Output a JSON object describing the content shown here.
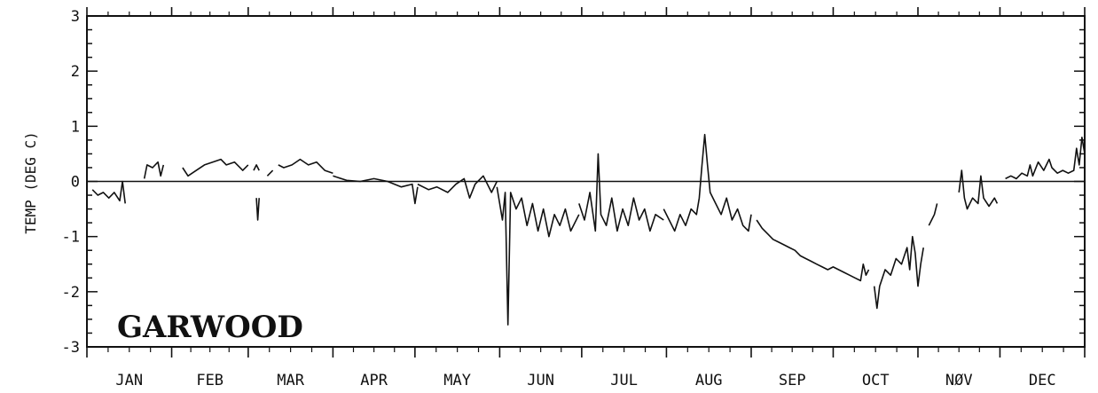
{
  "chart_data": {
    "type": "line",
    "title": "",
    "xlabel": "",
    "ylabel": "TEMP (DEG C)",
    "annotation": "GARWOOD",
    "xlim": [
      0,
      365
    ],
    "ylim": [
      -3,
      3
    ],
    "yticks": [
      -3,
      -2,
      -1,
      0,
      1,
      2,
      3
    ],
    "months": [
      "JAN",
      "FEB",
      "MAR",
      "APR",
      "MAY",
      "JUN",
      "JUL",
      "AUG",
      "SEP",
      "OCT",
      "NØV",
      "DEC"
    ],
    "month_days": [
      31,
      28,
      31,
      30,
      31,
      30,
      31,
      31,
      30,
      31,
      30,
      31
    ],
    "reference_line": 0,
    "grid": false,
    "line_color": "#111111",
    "series": [
      {
        "x_unit": "day of year",
        "segments": [
          [
            [
              2,
              -0.15
            ],
            [
              4,
              -0.25
            ],
            [
              6,
              -0.2
            ],
            [
              8,
              -0.3
            ],
            [
              10,
              -0.2
            ],
            [
              12,
              -0.35
            ],
            [
              13,
              0
            ],
            [
              14,
              -0.4
            ]
          ],
          [
            [
              21,
              0.05
            ],
            [
              22,
              0.3
            ],
            [
              24,
              0.25
            ],
            [
              26,
              0.35
            ],
            [
              27,
              0.1
            ],
            [
              28,
              0.3
            ]
          ],
          [
            [
              35,
              0.25
            ],
            [
              37,
              0.1
            ],
            [
              40,
              0.2
            ],
            [
              43,
              0.3
            ],
            [
              46,
              0.35
            ],
            [
              49,
              0.4
            ],
            [
              51,
              0.3
            ],
            [
              54,
              0.35
            ],
            [
              57,
              0.2
            ],
            [
              59,
              0.3
            ]
          ],
          [
            [
              61,
              0.2
            ],
            [
              62,
              0.3
            ],
            [
              63,
              0.2
            ]
          ],
          [
            [
              62,
              -0.3
            ],
            [
              62.5,
              -0.7
            ],
            [
              63,
              -0.3
            ]
          ],
          [
            [
              66,
              0.1
            ],
            [
              67,
              0.15
            ],
            [
              68,
              0.2
            ]
          ],
          [
            [
              70,
              0.3
            ],
            [
              72,
              0.25
            ],
            [
              75,
              0.3
            ],
            [
              78,
              0.4
            ],
            [
              81,
              0.3
            ],
            [
              84,
              0.35
            ],
            [
              87,
              0.2
            ],
            [
              90,
              0.15
            ]
          ],
          [
            [
              90,
              0.1
            ],
            [
              95,
              0.02
            ],
            [
              100,
              0
            ],
            [
              105,
              0.05
            ],
            [
              110,
              0.0
            ],
            [
              115,
              -0.1
            ],
            [
              119,
              -0.05
            ],
            [
              120,
              -0.4
            ],
            [
              121,
              -0.1
            ]
          ],
          [
            [
              121,
              -0.05
            ],
            [
              125,
              -0.15
            ],
            [
              128,
              -0.1
            ],
            [
              132,
              -0.2
            ],
            [
              135,
              -0.05
            ],
            [
              138,
              0.05
            ],
            [
              140,
              -0.3
            ],
            [
              142,
              -0.05
            ],
            [
              145,
              0.1
            ],
            [
              148,
              -0.2
            ],
            [
              150,
              0.0
            ]
          ],
          [
            [
              150,
              -0.1
            ],
            [
              152,
              -0.7
            ],
            [
              153,
              -0.2
            ],
            [
              154,
              -2.6
            ],
            [
              155,
              -0.2
            ],
            [
              157,
              -0.5
            ],
            [
              159,
              -0.3
            ],
            [
              161,
              -0.8
            ],
            [
              163,
              -0.4
            ],
            [
              165,
              -0.9
            ],
            [
              167,
              -0.5
            ],
            [
              169,
              -1.0
            ],
            [
              171,
              -0.6
            ],
            [
              173,
              -0.8
            ],
            [
              175,
              -0.5
            ],
            [
              177,
              -0.9
            ],
            [
              180,
              -0.6
            ]
          ],
          [
            [
              180,
              -0.4
            ],
            [
              182,
              -0.7
            ],
            [
              184,
              -0.2
            ],
            [
              186,
              -0.9
            ],
            [
              187,
              0.5
            ],
            [
              188,
              -0.6
            ],
            [
              190,
              -0.8
            ],
            [
              192,
              -0.3
            ],
            [
              194,
              -0.9
            ],
            [
              196,
              -0.5
            ],
            [
              198,
              -0.8
            ],
            [
              200,
              -0.3
            ],
            [
              202,
              -0.7
            ],
            [
              204,
              -0.5
            ],
            [
              206,
              -0.9
            ],
            [
              208,
              -0.6
            ],
            [
              211,
              -0.7
            ]
          ],
          [
            [
              211,
              -0.5
            ],
            [
              213,
              -0.7
            ],
            [
              215,
              -0.9
            ],
            [
              217,
              -0.6
            ],
            [
              219,
              -0.8
            ],
            [
              221,
              -0.5
            ],
            [
              223,
              -0.6
            ],
            [
              224,
              -0.3
            ],
            [
              225,
              0.3
            ],
            [
              226,
              0.85
            ],
            [
              227,
              0.3
            ],
            [
              228,
              -0.2
            ],
            [
              230,
              -0.4
            ],
            [
              232,
              -0.6
            ],
            [
              234,
              -0.3
            ],
            [
              236,
              -0.7
            ],
            [
              238,
              -0.5
            ],
            [
              240,
              -0.8
            ],
            [
              242,
              -0.9
            ],
            [
              243,
              -0.6
            ]
          ],
          [
            [
              245,
              -0.7
            ],
            [
              247,
              -0.85
            ],
            [
              249,
              -0.95
            ],
            [
              251,
              -1.05
            ],
            [
              253,
              -1.1
            ],
            [
              255,
              -1.15
            ],
            [
              257,
              -1.2
            ],
            [
              259,
              -1.25
            ],
            [
              261,
              -1.35
            ],
            [
              263,
              -1.4
            ],
            [
              265,
              -1.45
            ],
            [
              267,
              -1.5
            ],
            [
              269,
              -1.55
            ],
            [
              271,
              -1.6
            ],
            [
              273,
              -1.55
            ],
            [
              275,
              -1.6
            ],
            [
              277,
              -1.65
            ],
            [
              279,
              -1.7
            ],
            [
              281,
              -1.75
            ],
            [
              283,
              -1.8
            ],
            [
              284,
              -1.5
            ],
            [
              285,
              -1.7
            ],
            [
              286,
              -1.6
            ]
          ],
          [
            [
              288,
              -1.9
            ],
            [
              289,
              -2.3
            ],
            [
              290,
              -1.9
            ],
            [
              292,
              -1.6
            ],
            [
              294,
              -1.7
            ],
            [
              296,
              -1.4
            ],
            [
              298,
              -1.5
            ],
            [
              300,
              -1.2
            ],
            [
              301,
              -1.6
            ],
            [
              302,
              -1.0
            ],
            [
              303,
              -1.3
            ],
            [
              304,
              -1.9
            ],
            [
              305,
              -1.5
            ],
            [
              306,
              -1.2
            ]
          ],
          [
            [
              308,
              -0.8
            ],
            [
              309,
              -0.7
            ],
            [
              310,
              -0.6
            ],
            [
              311,
              -0.4
            ]
          ],
          [
            [
              319,
              -0.2
            ],
            [
              320,
              0.2
            ],
            [
              321,
              -0.3
            ],
            [
              322,
              -0.5
            ],
            [
              324,
              -0.3
            ],
            [
              326,
              -0.4
            ],
            [
              327,
              0.1
            ],
            [
              328,
              -0.3
            ],
            [
              330,
              -0.45
            ],
            [
              332,
              -0.3
            ],
            [
              333,
              -0.4
            ]
          ],
          [
            [
              336,
              0.05
            ],
            [
              338,
              0.1
            ],
            [
              340,
              0.05
            ],
            [
              342,
              0.15
            ],
            [
              344,
              0.1
            ],
            [
              345,
              0.3
            ],
            [
              346,
              0.1
            ],
            [
              348,
              0.35
            ],
            [
              350,
              0.2
            ],
            [
              352,
              0.4
            ],
            [
              353,
              0.25
            ],
            [
              355,
              0.15
            ],
            [
              357,
              0.2
            ],
            [
              359,
              0.15
            ],
            [
              361,
              0.2
            ],
            [
              362,
              0.6
            ],
            [
              363,
              0.3
            ],
            [
              364,
              0.8
            ],
            [
              365,
              0.5
            ]
          ]
        ]
      }
    ]
  }
}
